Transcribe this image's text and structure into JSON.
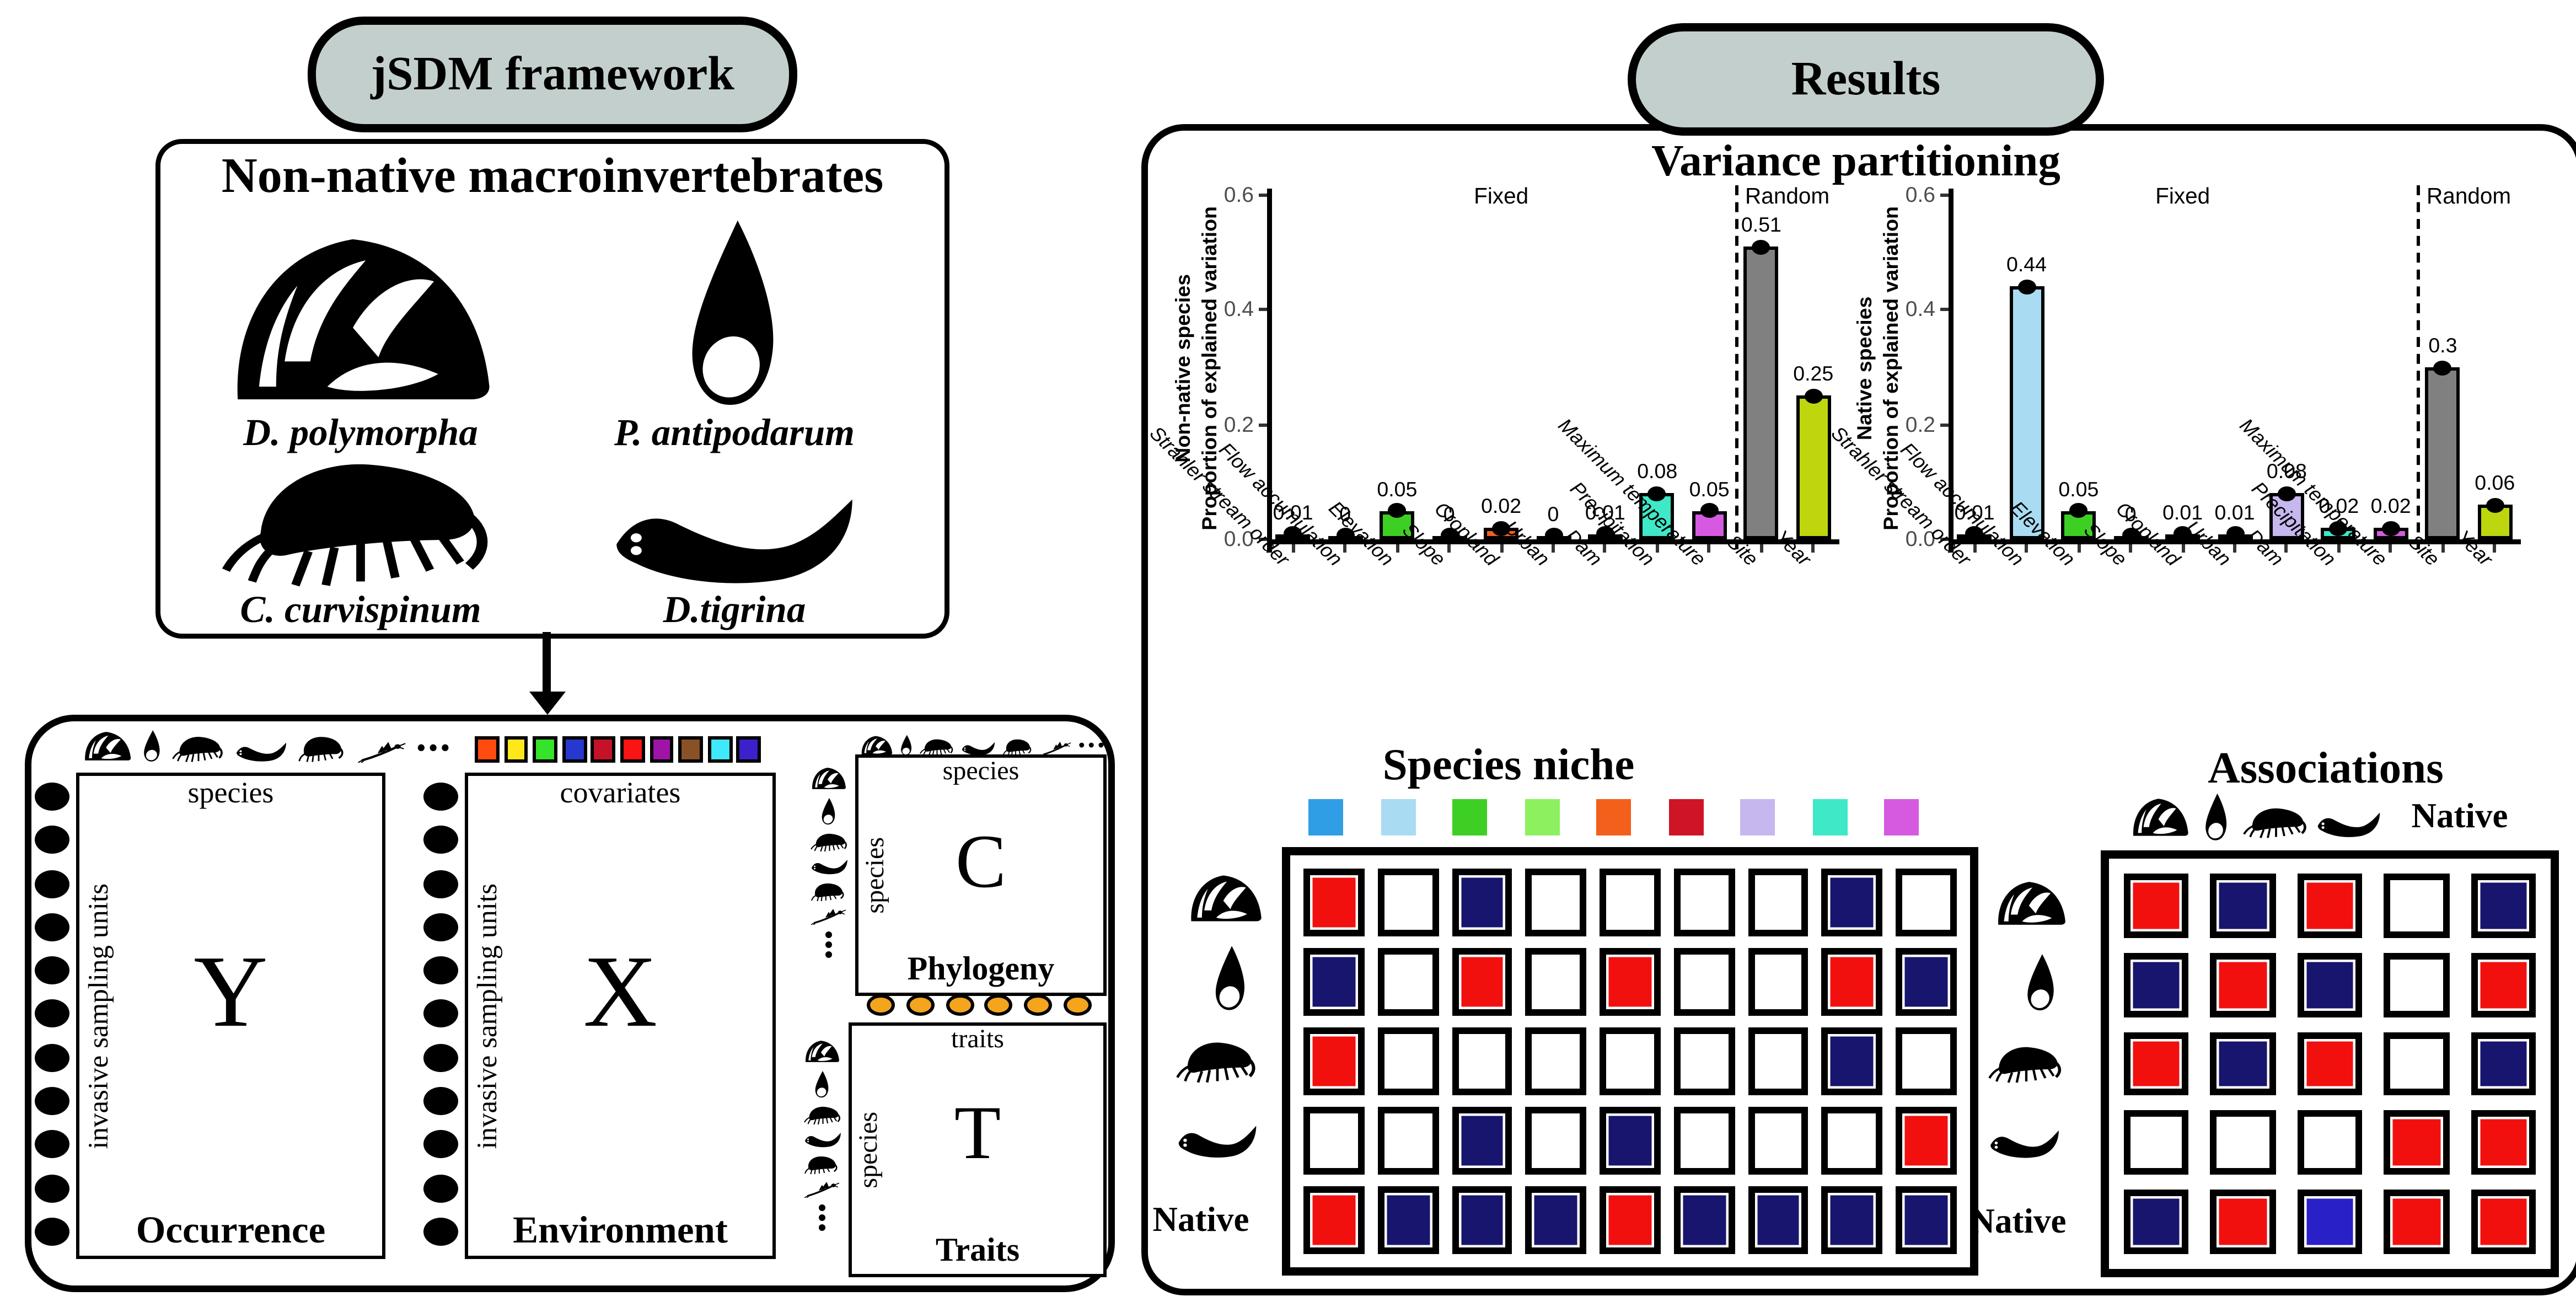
{
  "titles": {
    "framework_pill": "jSDM framework",
    "results_pill": "Results",
    "variance": "Variance partitioning",
    "species_niche": "Species niche",
    "associations": "Associations"
  },
  "framework": {
    "box_title": "Non-native macroinvertebrates",
    "species": [
      {
        "name": "D. polymorpha",
        "icon": "mussel"
      },
      {
        "name": "P. antipodarum",
        "icon": "snail"
      },
      {
        "name": "C. curvispinum",
        "icon": "amphipod"
      },
      {
        "name": "D.tigrina",
        "icon": "flatworm"
      }
    ],
    "species_icon_row": [
      "mussel",
      "snail",
      "amphipod",
      "flatworm",
      "shrimp",
      "mayfly"
    ],
    "ellipsis": "•••",
    "unit_dot_count": 11,
    "trait_dot_count": 6,
    "covariate_swatches": [
      "#ff4a10",
      "#ffe81a",
      "#35e42a",
      "#2638cf",
      "#c51228",
      "#fa1414",
      "#a013a8",
      "#8a5026",
      "#3fe8fa",
      "#3c20cc"
    ],
    "matrices": {
      "occurrence": {
        "top_label": "species",
        "side_label": "invasive sampling units",
        "symbol": "Y",
        "caption": "Occurrence"
      },
      "environment": {
        "top_label": "covariates",
        "side_label": "invasive sampling units",
        "symbol": "X",
        "caption": "Environment"
      },
      "phylogeny": {
        "top_label": "species",
        "side_label": "species",
        "symbol": "C",
        "caption": "Phylogeny"
      },
      "traits": {
        "top_label": "traits",
        "side_label": "species",
        "symbol": "T",
        "caption": "Traits"
      }
    }
  },
  "chart_data": [
    {
      "type": "bar",
      "ylabel_line1": "Non-native species",
      "ylabel_line2": "Proportion of explained variation",
      "fixed_label": "Fixed",
      "random_label": "Random",
      "categories": [
        "Strahler stream order",
        "Flow accumulation",
        "Elevation",
        "Slope",
        "Cropland",
        "Urban",
        "Dam",
        "Precipitation",
        "Maximum temperature",
        "Site",
        "Year"
      ],
      "values": [
        0.01,
        0,
        0.05,
        0,
        0.02,
        0,
        0.01,
        0.08,
        0.05,
        0.51,
        0.25
      ],
      "value_labels": [
        "0.01",
        "0",
        "0.05",
        "0",
        "0.02",
        "0",
        "0.01",
        "0.08",
        "0.05",
        "0.51",
        "0.25"
      ],
      "colors": [
        "#2f9ee5",
        "#a9dcf2",
        "#3ecf25",
        "#8df05e",
        "#f2601c",
        "#cf1426",
        "#c6b7ee",
        "#3fe8c6",
        "#d55ae0",
        "#808080",
        "#bdd60e"
      ],
      "ylim": [
        0,
        0.6
      ],
      "yticks": [
        0,
        0.2,
        0.4,
        0.6
      ],
      "random_start_index": 9,
      "grid": false,
      "legend": false
    },
    {
      "type": "bar",
      "ylabel_line1": "Native species",
      "ylabel_line2": "Proportion of explained variation",
      "fixed_label": "Fixed",
      "random_label": "Random",
      "categories": [
        "Strahler stream order",
        "Flow accumulation",
        "Elevation",
        "Slope",
        "Cropland",
        "Urban",
        "Dam",
        "Precipitation",
        "Maximum temperature",
        "Site",
        "Year"
      ],
      "values": [
        0.01,
        0.44,
        0.05,
        0,
        0.01,
        0.01,
        0.08,
        0.02,
        0.02,
        0.3,
        0.06
      ],
      "value_labels": [
        "0.01",
        "0.44",
        "0.05",
        "0",
        "0.01",
        "0.01",
        "0.08",
        "0.02",
        "0.02",
        "0.3",
        "0.06"
      ],
      "colors": [
        "#2f9ee5",
        "#a9dcf2",
        "#3ecf25",
        "#8df05e",
        "#f2601c",
        "#cf1426",
        "#c6b7ee",
        "#3fe8c6",
        "#d55ae0",
        "#808080",
        "#bdd60e"
      ],
      "ylim": [
        0,
        0.6
      ],
      "yticks": [
        0,
        0.2,
        0.4,
        0.6
      ],
      "random_start_index": 9,
      "grid": false,
      "legend": false
    }
  ],
  "results": {
    "niche": {
      "row_icons": [
        "mussel",
        "snail",
        "amphipod",
        "flatworm"
      ],
      "native_label": "Native",
      "col_colors": [
        "#2f9ee5",
        "#a9dcf2",
        "#3ecf25",
        "#8df05e",
        "#f2601c",
        "#cf1426",
        "#c6b7ee",
        "#3fe8c6",
        "#d55ae0"
      ],
      "grid": [
        [
          "red",
          "white",
          "navy",
          "white",
          "white",
          "white",
          "white",
          "navy",
          "white"
        ],
        [
          "navy",
          "white",
          "red",
          "white",
          "red",
          "white",
          "white",
          "red",
          "navy"
        ],
        [
          "red",
          "white",
          "white",
          "white",
          "white",
          "white",
          "white",
          "navy",
          "white"
        ],
        [
          "white",
          "white",
          "navy",
          "white",
          "navy",
          "white",
          "white",
          "white",
          "red"
        ],
        [
          "red",
          "navy",
          "navy",
          "navy",
          "red",
          "navy",
          "navy",
          "navy",
          "navy"
        ]
      ]
    },
    "associations": {
      "col_icons": [
        "mussel",
        "snail",
        "amphipod",
        "flatworm"
      ],
      "row_icons": [
        "mussel",
        "snail",
        "amphipod",
        "flatworm"
      ],
      "native_label": "Native",
      "grid": [
        [
          "red",
          "navy",
          "red",
          "white",
          "navy"
        ],
        [
          "navy",
          "red",
          "navy",
          "white",
          "red"
        ],
        [
          "red",
          "navy",
          "red",
          "white",
          "navy"
        ],
        [
          "white",
          "white",
          "white",
          "red",
          "red"
        ],
        [
          "navy",
          "red",
          "blue",
          "red",
          "red"
        ]
      ]
    }
  },
  "palette": {
    "red": "#f2100f",
    "navy": "#18156e",
    "blue": "#2a20c8",
    "white": "#ffffff",
    "pill_fill": "#c3cfcc",
    "orange_dot": "#f2a51d"
  }
}
